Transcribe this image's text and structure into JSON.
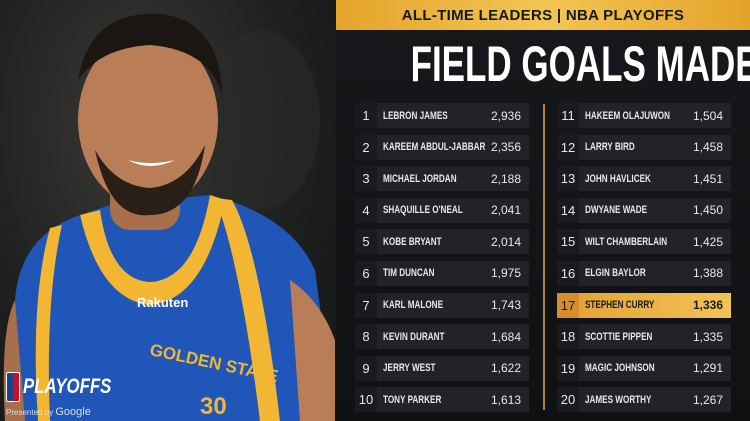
{
  "banner": "ALL-TIME LEADERS | NBA PLAYOFFS",
  "title": "FIELD GOALS MADE",
  "accent_color": "#f0bd4c",
  "highlight_rank": 17,
  "leaders": [
    {
      "rank": "1",
      "name": "LEBRON JAMES",
      "value": "2,936"
    },
    {
      "rank": "2",
      "name": "KAREEM ABDUL-JABBAR",
      "value": "2,356"
    },
    {
      "rank": "3",
      "name": "MICHAEL JORDAN",
      "value": "2,188"
    },
    {
      "rank": "4",
      "name": "SHAQUILLE O'NEAL",
      "value": "2,041"
    },
    {
      "rank": "5",
      "name": "KOBE BRYANT",
      "value": "2,014"
    },
    {
      "rank": "6",
      "name": "TIM DUNCAN",
      "value": "1,975"
    },
    {
      "rank": "7",
      "name": "KARL MALONE",
      "value": "1,743"
    },
    {
      "rank": "8",
      "name": "KEVIN DURANT",
      "value": "1,684"
    },
    {
      "rank": "9",
      "name": "JERRY WEST",
      "value": "1,622"
    },
    {
      "rank": "10",
      "name": "TONY PARKER",
      "value": "1,613"
    },
    {
      "rank": "11",
      "name": "HAKEEM OLAJUWON",
      "value": "1,504"
    },
    {
      "rank": "12",
      "name": "LARRY BIRD",
      "value": "1,458"
    },
    {
      "rank": "13",
      "name": "JOHN HAVLICEK",
      "value": "1,451"
    },
    {
      "rank": "14",
      "name": "DWYANE WADE",
      "value": "1,450"
    },
    {
      "rank": "15",
      "name": "WILT CHAMBERLAIN",
      "value": "1,425"
    },
    {
      "rank": "16",
      "name": "ELGIN BAYLOR",
      "value": "1,388"
    },
    {
      "rank": "17",
      "name": "STEPHEN CURRY",
      "value": "1,336"
    },
    {
      "rank": "18",
      "name": "SCOTTIE PIPPEN",
      "value": "1,335"
    },
    {
      "rank": "19",
      "name": "MAGIC JOHNSON",
      "value": "1,291"
    },
    {
      "rank": "20",
      "name": "JAMES WORTHY",
      "value": "1,267"
    }
  ],
  "photo": {
    "jersey_text": "GOLDEN STATE",
    "sponsor": "Rakuten",
    "number": "30"
  },
  "logo": {
    "text": "PLAYOFFS",
    "presented_by": "Presented by",
    "sponsor": "Google"
  }
}
